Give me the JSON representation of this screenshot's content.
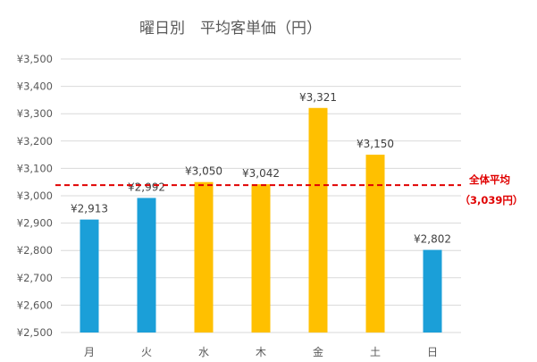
{
  "chart_data": {
    "type": "bar",
    "title": "曜日別　平均客単価（円）",
    "categories": [
      "月",
      "火",
      "水",
      "木",
      "金",
      "土",
      "日"
    ],
    "values": [
      2913,
      2992,
      3050,
      3042,
      3321,
      3150,
      2802
    ],
    "value_labels": [
      "¥2,913",
      "¥2,992",
      "¥3,050",
      "¥3,042",
      "¥3,321",
      "¥3,150",
      "¥2,802"
    ],
    "bar_colors": [
      "#1b9fd8",
      "#1b9fd8",
      "#ffc000",
      "#ffc000",
      "#ffc000",
      "#ffc000",
      "#1b9fd8"
    ],
    "ylim": [
      2500,
      3500
    ],
    "yticks": [
      2500,
      2600,
      2700,
      2800,
      2900,
      3000,
      3100,
      3200,
      3300,
      3400,
      3500
    ],
    "ytick_labels": [
      "¥2,500",
      "¥2,600",
      "¥2,700",
      "¥2,800",
      "¥2,900",
      "¥3,000",
      "¥3,100",
      "¥3,200",
      "¥3,300",
      "¥3,400",
      "¥3,500"
    ],
    "grid": true,
    "legend": false,
    "reference_line": {
      "value": 3039,
      "label_line1": "全体平均",
      "label_line2": "（3,039円）",
      "color": "#e00000",
      "style": "dashed"
    }
  }
}
